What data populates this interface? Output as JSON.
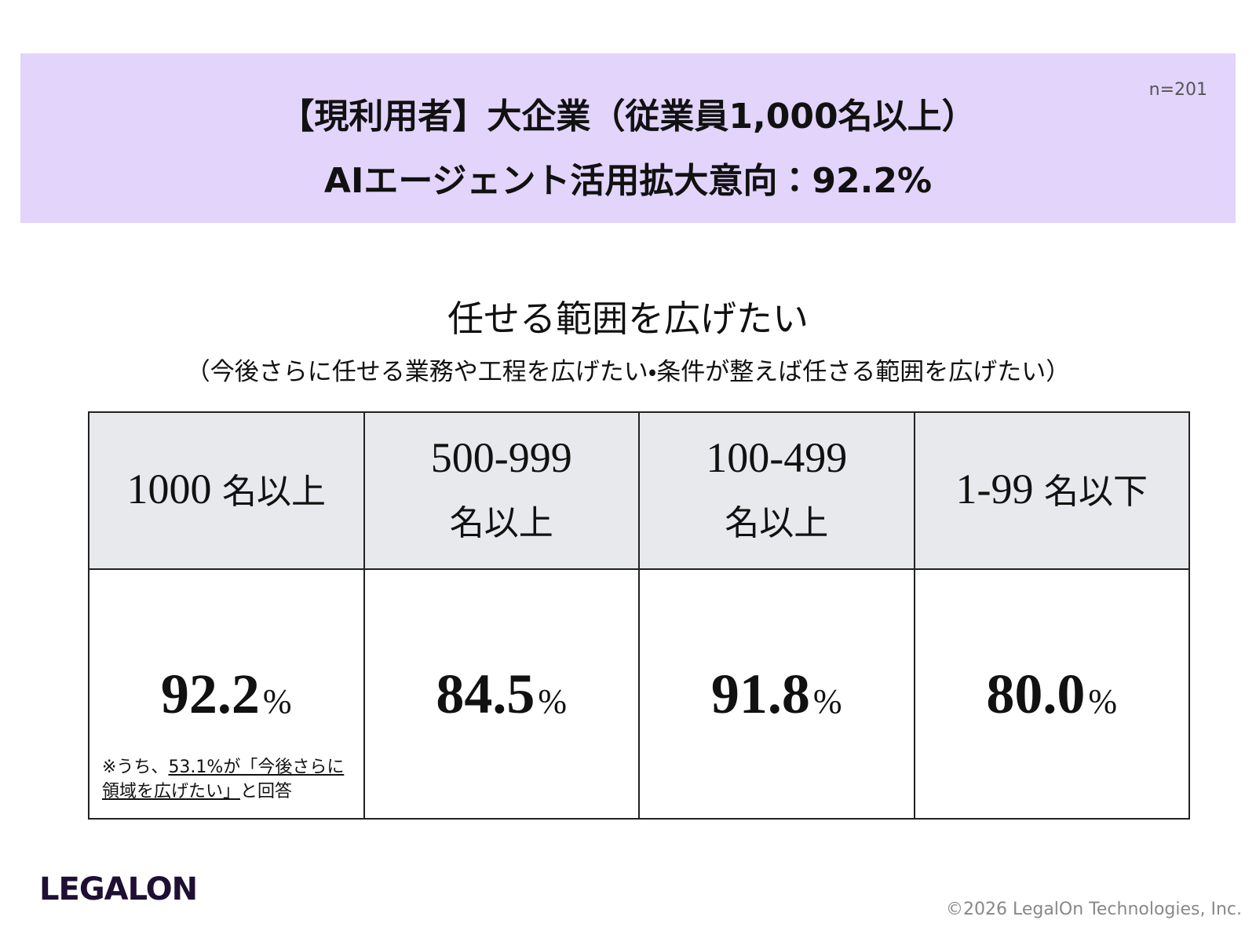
{
  "header": {
    "title_line1": "【現利用者】大企業（従業員1,000名以上）",
    "title_line2": "AIエージェント活用拡大意向：92.2%",
    "sample": "n=201"
  },
  "section": {
    "title": "任せる範囲を広げたい",
    "subtitle": "（今後さらに任せる業務や工程を広げたい・条件が整えば任さる範囲を広げたい）"
  },
  "table": {
    "headers": [
      {
        "number": "1000",
        "unit": "名以上"
      },
      {
        "number": "500-999",
        "unit": "名以上"
      },
      {
        "number": "100-499",
        "unit": "名以上"
      },
      {
        "number": "1-99",
        "unit": "名以下"
      }
    ],
    "values": [
      {
        "value": "92.2",
        "unit": "%"
      },
      {
        "value": "84.5",
        "unit": "%"
      },
      {
        "value": "91.8",
        "unit": "%"
      },
      {
        "value": "80.0",
        "unit": "%"
      }
    ],
    "note": {
      "prefix": "※うち、",
      "highlight": "53.1%が「今後さらに領域を広げたい」",
      "suffix": "と回答"
    }
  },
  "footer": {
    "logo": "LEGALON",
    "copyright": "©2026 LegalOn Technologies, Inc."
  }
}
